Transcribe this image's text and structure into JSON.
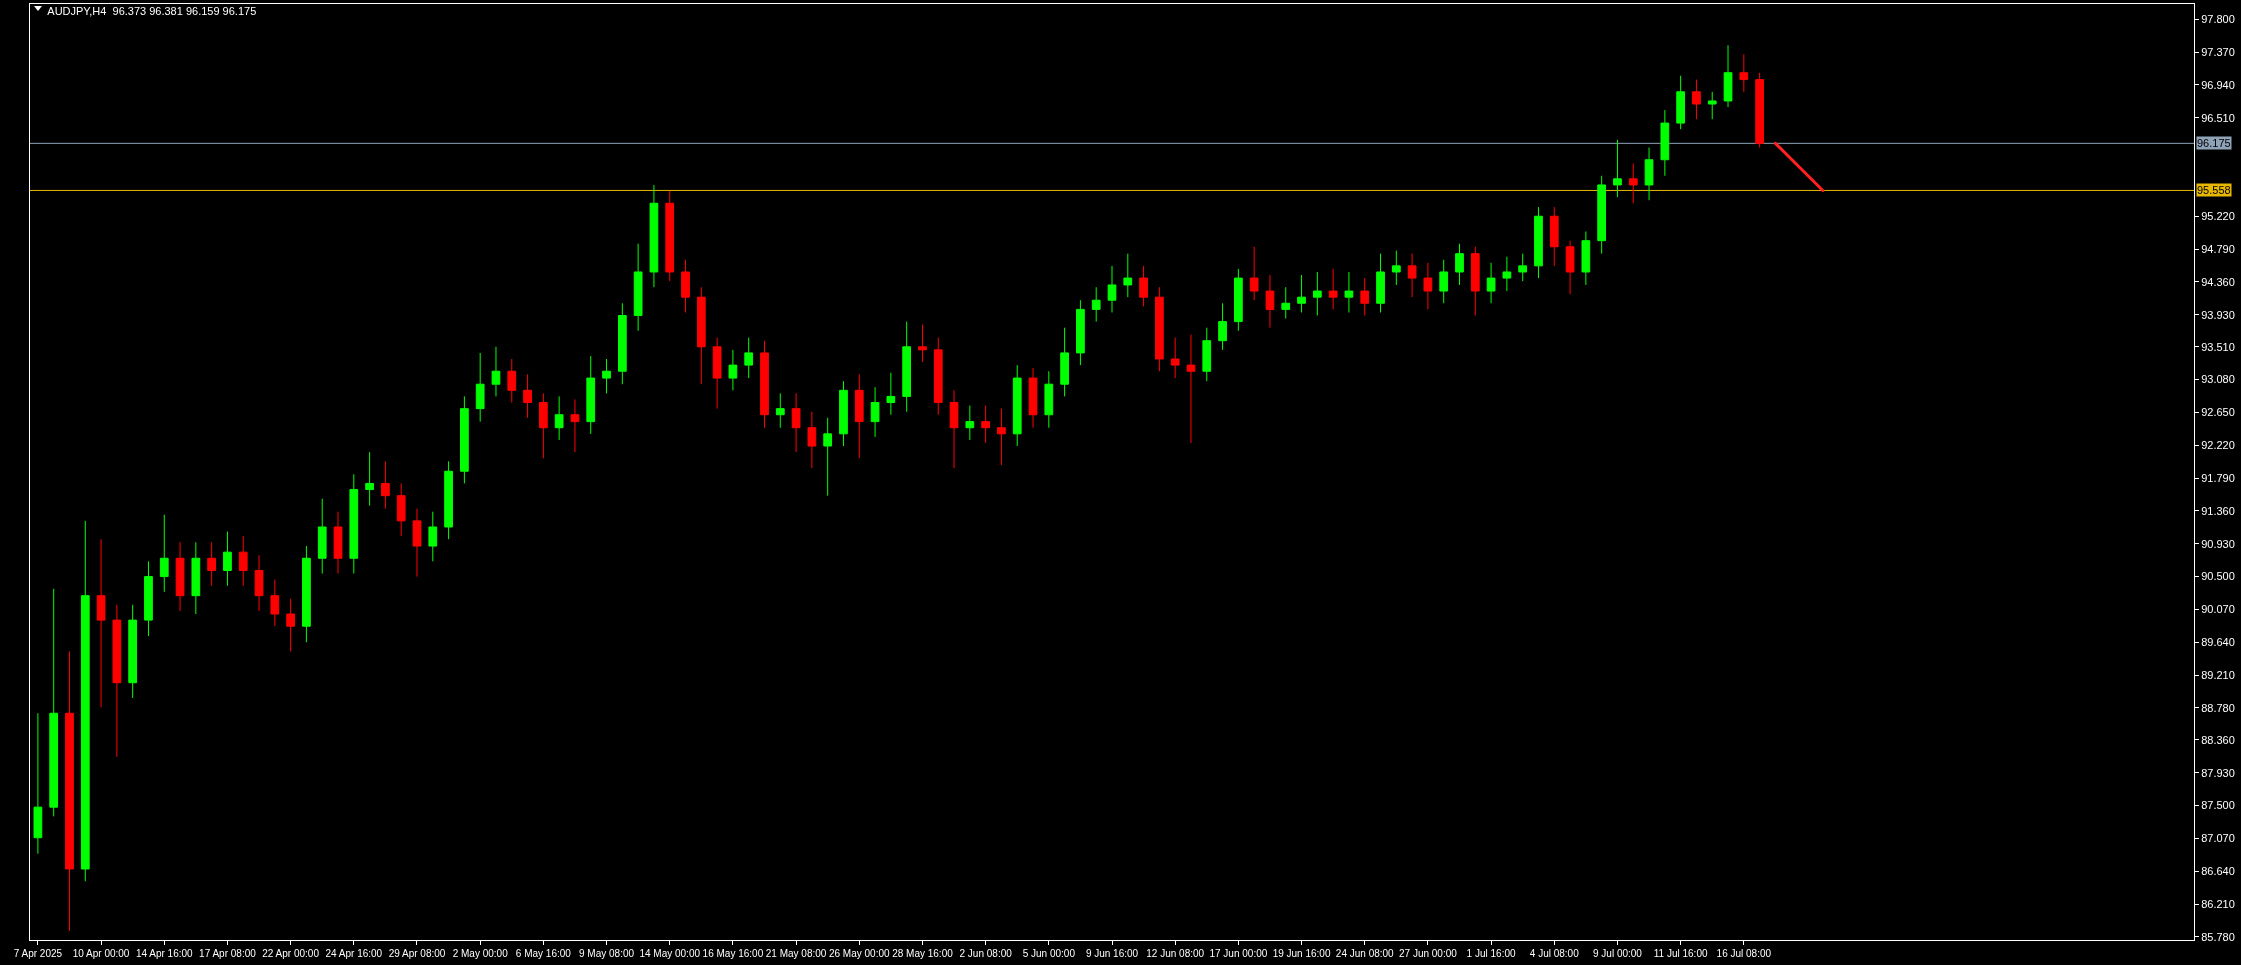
{
  "chart_data": {
    "type": "candlestick",
    "title": "AUDJPY,H4  96.373 96.381 96.159 96.175",
    "categories": [
      "7 Apr 2025",
      null,
      null,
      null,
      "10 Apr 00:00",
      null,
      null,
      null,
      "14 Apr 16:00",
      null,
      null,
      null,
      "17 Apr 08:00",
      null,
      null,
      null,
      "22 Apr 00:00",
      null,
      null,
      null,
      "24 Apr 16:00",
      null,
      null,
      null,
      "29 Apr 08:00",
      null,
      null,
      null,
      "2 May 00:00",
      null,
      null,
      null,
      "6 May 16:00",
      null,
      null,
      null,
      "9 May 08:00",
      null,
      null,
      null,
      "14 May 00:00",
      null,
      null,
      null,
      "16 May 16:00",
      null,
      null,
      null,
      "21 May 08:00",
      null,
      null,
      null,
      "26 May 00:00",
      null,
      null,
      null,
      "28 May 16:00",
      null,
      null,
      null,
      "2 Jun 08:00",
      null,
      null,
      null,
      "5 Jun 00:00",
      null,
      null,
      null,
      "9 Jun 16:00",
      null,
      null,
      null,
      "12 Jun 08:00",
      null,
      null,
      null,
      "17 Jun 00:00",
      null,
      null,
      null,
      "19 Jun 16:00",
      null,
      null,
      null,
      "24 Jun 08:00",
      null,
      null,
      null,
      "27 Jun 00:00",
      null,
      null,
      null,
      "1 Jul 16:00",
      null,
      null,
      null,
      "4 Jul 08:00",
      null,
      null,
      null,
      "9 Jul 00:00",
      null,
      null,
      null,
      "11 Jul 16:00",
      null,
      null,
      null,
      "16 Jul 08:00",
      null,
      null,
      null,
      null,
      null,
      null,
      null,
      null,
      null,
      null,
      null,
      null,
      null,
      null,
      null,
      null,
      null,
      null,
      null,
      null,
      null,
      null,
      null,
      null,
      null,
      null,
      null,
      null
    ],
    "ylim": [
      85.74,
      98.0
    ],
    "yticks": [
      {
        "value": 97.8,
        "label": "97.800"
      },
      {
        "value": 97.37,
        "label": "97.370"
      },
      {
        "value": 96.94,
        "label": "96.940"
      },
      {
        "value": 96.51,
        "label": "96.510"
      },
      {
        "value": 95.22,
        "label": "95.220"
      },
      {
        "value": 94.79,
        "label": "94.790"
      },
      {
        "value": 94.36,
        "label": "94.360"
      },
      {
        "value": 93.93,
        "label": "93.930"
      },
      {
        "value": 93.51,
        "label": "93.510"
      },
      {
        "value": 93.08,
        "label": "93.080"
      },
      {
        "value": 92.65,
        "label": "92.650"
      },
      {
        "value": 92.22,
        "label": "92.220"
      },
      {
        "value": 91.79,
        "label": "91.790"
      },
      {
        "value": 91.36,
        "label": "91.360"
      },
      {
        "value": 90.93,
        "label": "90.930"
      },
      {
        "value": 90.5,
        "label": "90.500"
      },
      {
        "value": 90.07,
        "label": "90.070"
      },
      {
        "value": 89.64,
        "label": "89.640"
      },
      {
        "value": 89.21,
        "label": "89.210"
      },
      {
        "value": 88.78,
        "label": "88.780"
      },
      {
        "value": 88.36,
        "label": "88.360"
      },
      {
        "value": 87.93,
        "label": "87.930"
      },
      {
        "value": 87.5,
        "label": "87.500"
      },
      {
        "value": 87.07,
        "label": "87.070"
      },
      {
        "value": 86.64,
        "label": "86.640"
      },
      {
        "value": 86.21,
        "label": "86.210"
      },
      {
        "value": 85.78,
        "label": "85.780"
      }
    ],
    "grid": false,
    "ref_lines": [
      {
        "axis": "y",
        "value": 96.175,
        "label": "96.175",
        "color": "#8fa3b8"
      },
      {
        "axis": "y",
        "value": 95.558,
        "label": "95.558",
        "color": "#e8b800"
      }
    ],
    "colors": [
      "#00ff00",
      "#00ff00",
      "#ff0000",
      "#00ff00",
      "#ff0000",
      "#ff0000",
      "#00ff00",
      "#00ff00",
      "#00ff00",
      "#ff0000",
      "#00ff00",
      "#ff0000",
      "#00ff00",
      "#ff0000",
      "#ff0000",
      "#ff0000",
      "#ff0000",
      "#00ff00",
      "#00ff00",
      "#ff0000",
      "#00ff00",
      "#00ff00",
      "#ff0000",
      "#ff0000",
      "#ff0000",
      "#00ff00",
      "#00ff00",
      "#00ff00",
      "#00ff00",
      "#00ff00",
      "#ff0000",
      "#ff0000",
      "#ff0000",
      "#00ff00",
      "#ff0000",
      "#00ff00",
      "#00ff00",
      "#00ff00",
      "#00ff00",
      "#00ff00",
      "#ff0000",
      "#ff0000",
      "#ff0000",
      "#ff0000",
      "#00ff00",
      "#00ff00",
      "#ff0000",
      "#00ff00",
      "#ff0000",
      "#ff0000",
      "#00ff00",
      "#00ff00",
      "#ff0000",
      "#00ff00",
      "#00ff00",
      "#00ff00",
      "#ff0000",
      "#ff0000",
      "#ff0000",
      "#00ff00",
      "#ff0000",
      "#ff0000",
      "#00ff00",
      "#ff0000",
      "#00ff00",
      "#00ff00",
      "#00ff00",
      "#00ff00",
      "#00ff00",
      "#00ff00",
      "#ff0000",
      "#ff0000",
      "#ff0000",
      "#ff0000",
      "#00ff00",
      "#00ff00",
      "#00ff00",
      "#ff0000",
      "#ff0000",
      "#00ff00",
      "#00ff00",
      "#00ff00",
      "#ff0000",
      "#00ff00",
      "#ff0000",
      "#00ff00",
      "#00ff00",
      "#ff0000",
      "#ff0000",
      "#00ff00",
      "#00ff00",
      "#ff0000",
      "#00ff00",
      "#00ff00",
      "#00ff00",
      "#00ff00",
      "#ff0000",
      "#ff0000",
      "#00ff00",
      "#00ff00",
      "#00ff00",
      "#ff0000",
      "#00ff00",
      "#00ff00",
      "#00ff00",
      "#ff0000",
      "#00ff00",
      "#00ff00",
      "#ff0000",
      "#ff0000",
      null,
      null,
      null,
      null,
      null,
      null,
      null,
      null,
      null,
      null,
      null,
      null,
      null,
      null,
      null,
      null,
      null,
      null,
      null,
      null,
      null,
      null,
      null,
      null,
      null,
      null,
      null
    ],
    "ohlc": [
      [
        87.08,
        88.71,
        86.87,
        87.48
      ],
      [
        87.48,
        90.34,
        87.36,
        88.71
      ],
      [
        88.71,
        89.52,
        85.86,
        86.67
      ],
      [
        86.67,
        91.23,
        86.51,
        90.25
      ],
      [
        90.25,
        90.99,
        88.79,
        89.93
      ],
      [
        89.93,
        90.13,
        88.14,
        89.11
      ],
      [
        89.11,
        90.13,
        88.91,
        89.93
      ],
      [
        89.93,
        90.7,
        89.72,
        90.5
      ],
      [
        90.5,
        91.31,
        90.3,
        90.74
      ],
      [
        90.74,
        90.95,
        90.05,
        90.25
      ],
      [
        90.25,
        90.95,
        90.01,
        90.74
      ],
      [
        90.74,
        90.95,
        90.38,
        90.58
      ],
      [
        90.58,
        91.09,
        90.38,
        90.82
      ],
      [
        90.82,
        91.03,
        90.38,
        90.58
      ],
      [
        90.58,
        90.78,
        90.05,
        90.25
      ],
      [
        90.25,
        90.46,
        89.85,
        90.01
      ],
      [
        90.01,
        90.21,
        89.52,
        89.85
      ],
      [
        89.85,
        90.9,
        89.64,
        90.74
      ],
      [
        90.74,
        91.52,
        90.54,
        91.15
      ],
      [
        91.15,
        91.35,
        90.54,
        90.74
      ],
      [
        90.74,
        91.84,
        90.54,
        91.64
      ],
      [
        91.64,
        92.13,
        91.43,
        91.72
      ],
      [
        91.72,
        92.01,
        91.39,
        91.56
      ],
      [
        91.56,
        91.72,
        91.03,
        91.23
      ],
      [
        91.23,
        91.39,
        90.5,
        90.9
      ],
      [
        90.9,
        91.35,
        90.7,
        91.15
      ],
      [
        91.15,
        92.01,
        90.99,
        91.88
      ],
      [
        91.88,
        92.86,
        91.72,
        92.7
      ],
      [
        92.7,
        93.43,
        92.53,
        93.02
      ],
      [
        93.02,
        93.51,
        92.86,
        93.19
      ],
      [
        93.19,
        93.35,
        92.78,
        92.94
      ],
      [
        92.94,
        93.15,
        92.58,
        92.78
      ],
      [
        92.78,
        92.9,
        92.05,
        92.45
      ],
      [
        92.45,
        92.86,
        92.29,
        92.62
      ],
      [
        92.62,
        92.82,
        92.13,
        92.53
      ],
      [
        92.53,
        93.39,
        92.37,
        93.1
      ],
      [
        93.1,
        93.35,
        92.9,
        93.19
      ],
      [
        93.19,
        94.08,
        93.02,
        93.92
      ],
      [
        93.92,
        94.86,
        93.72,
        94.49
      ],
      [
        94.49,
        95.63,
        94.29,
        95.39
      ],
      [
        95.39,
        95.55,
        94.37,
        94.49
      ],
      [
        94.49,
        94.65,
        93.96,
        94.16
      ],
      [
        94.16,
        94.29,
        93.02,
        93.51
      ],
      [
        93.51,
        93.63,
        92.7,
        93.1
      ],
      [
        93.1,
        93.47,
        92.94,
        93.27
      ],
      [
        93.27,
        93.63,
        93.1,
        93.43
      ],
      [
        93.43,
        93.59,
        92.45,
        92.62
      ],
      [
        92.62,
        92.9,
        92.45,
        92.7
      ],
      [
        92.7,
        92.9,
        92.13,
        92.45
      ],
      [
        92.45,
        92.66,
        91.92,
        92.21
      ],
      [
        92.21,
        92.58,
        91.56,
        92.37
      ],
      [
        92.37,
        93.06,
        92.21,
        92.94
      ],
      [
        92.94,
        93.15,
        92.05,
        92.53
      ],
      [
        92.53,
        92.98,
        92.33,
        92.78
      ],
      [
        92.78,
        93.17,
        92.62,
        92.86
      ],
      [
        92.86,
        93.84,
        92.66,
        93.51
      ],
      [
        93.51,
        93.8,
        93.31,
        93.47
      ],
      [
        93.47,
        93.63,
        92.62,
        92.78
      ],
      [
        92.78,
        92.94,
        91.92,
        92.45
      ],
      [
        92.45,
        92.74,
        92.29,
        92.53
      ],
      [
        92.53,
        92.74,
        92.25,
        92.45
      ],
      [
        92.45,
        92.7,
        91.96,
        92.37
      ],
      [
        92.37,
        93.27,
        92.21,
        93.1
      ],
      [
        93.1,
        93.23,
        92.45,
        92.62
      ],
      [
        92.62,
        93.19,
        92.45,
        93.02
      ],
      [
        93.02,
        93.76,
        92.86,
        93.43
      ],
      [
        93.43,
        94.12,
        93.27,
        94.0
      ],
      [
        94.0,
        94.29,
        93.84,
        94.12
      ],
      [
        94.12,
        94.57,
        93.96,
        94.32
      ],
      [
        94.32,
        94.73,
        94.16,
        94.41
      ],
      [
        94.41,
        94.57,
        94.04,
        94.16
      ],
      [
        94.16,
        94.29,
        93.19,
        93.35
      ],
      [
        93.35,
        93.63,
        93.1,
        93.27
      ],
      [
        93.27,
        93.67,
        92.25,
        93.19
      ],
      [
        93.19,
        93.76,
        93.06,
        93.59
      ],
      [
        93.59,
        94.08,
        93.47,
        93.84
      ],
      [
        93.84,
        94.53,
        93.72,
        94.41
      ],
      [
        94.41,
        94.82,
        94.12,
        94.24
      ],
      [
        94.24,
        94.45,
        93.76,
        94.0
      ],
      [
        94.0,
        94.29,
        93.88,
        94.08
      ],
      [
        94.08,
        94.45,
        93.96,
        94.16
      ],
      [
        94.16,
        94.49,
        93.92,
        94.24
      ],
      [
        94.24,
        94.53,
        94.0,
        94.16
      ],
      [
        94.16,
        94.49,
        93.96,
        94.24
      ],
      [
        94.24,
        94.41,
        93.92,
        94.08
      ],
      [
        94.08,
        94.73,
        93.96,
        94.49
      ],
      [
        94.49,
        94.77,
        94.32,
        94.57
      ],
      [
        94.57,
        94.73,
        94.16,
        94.41
      ],
      [
        94.41,
        94.61,
        94.0,
        94.24
      ],
      [
        94.24,
        94.65,
        94.08,
        94.49
      ],
      [
        94.49,
        94.86,
        94.32,
        94.73
      ],
      [
        94.73,
        94.82,
        93.92,
        94.24
      ],
      [
        94.24,
        94.61,
        94.08,
        94.41
      ],
      [
        94.41,
        94.69,
        94.24,
        94.49
      ],
      [
        94.49,
        94.73,
        94.37,
        94.57
      ],
      [
        94.57,
        95.34,
        94.41,
        95.22
      ],
      [
        95.22,
        95.34,
        94.57,
        94.82
      ],
      [
        94.82,
        94.9,
        94.2,
        94.49
      ],
      [
        94.49,
        95.02,
        94.32,
        94.9
      ],
      [
        94.9,
        95.75,
        94.73,
        95.63
      ],
      [
        95.63,
        96.22,
        95.47,
        95.71
      ],
      [
        95.71,
        95.91,
        95.39,
        95.63
      ],
      [
        95.63,
        96.12,
        95.43,
        95.96
      ],
      [
        95.96,
        96.61,
        95.75,
        96.44
      ],
      [
        96.44,
        97.06,
        96.36,
        96.85
      ],
      [
        96.85,
        97.01,
        96.49,
        96.69
      ],
      [
        96.69,
        96.85,
        96.49,
        96.73
      ],
      [
        96.73,
        97.46,
        96.65,
        97.1
      ],
      [
        97.1,
        97.34,
        96.85,
        97.01
      ],
      [
        97.01,
        97.1,
        96.12,
        96.175
      ],
      null,
      null,
      null,
      null,
      null,
      null,
      null,
      null,
      null,
      null,
      null,
      null,
      null,
      null,
      null,
      null,
      null,
      null,
      null,
      null,
      null,
      null,
      null,
      null,
      null,
      null,
      null
    ]
  }
}
